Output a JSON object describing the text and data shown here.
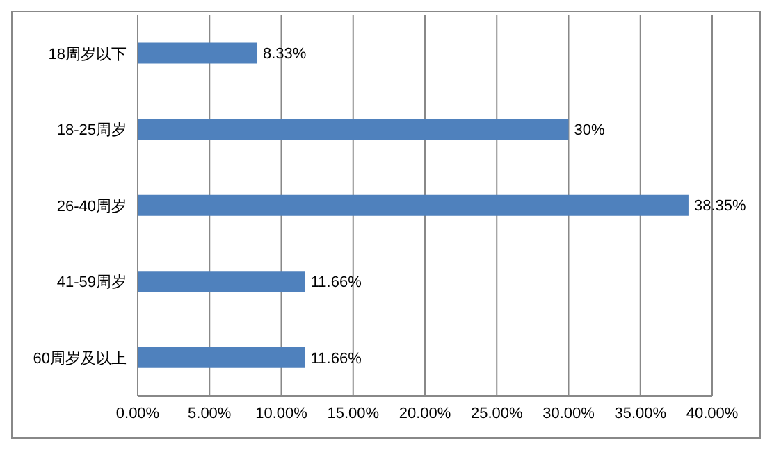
{
  "chart_data": {
    "type": "bar",
    "orientation": "horizontal",
    "categories": [
      "18周岁以下",
      "18-25周岁",
      "26-40周岁",
      "41-59周岁",
      "60周岁及以上"
    ],
    "values": [
      8.33,
      30,
      38.35,
      11.66,
      11.66
    ],
    "value_labels": [
      "8.33%",
      "30%",
      "38.35%",
      "11.66%",
      "11.66%"
    ],
    "color": "#4f81bd",
    "xlim": [
      0,
      40
    ],
    "xticks": [
      {
        "value": 0,
        "label": "0.00%"
      },
      {
        "value": 5,
        "label": "5.00%"
      },
      {
        "value": 10,
        "label": "10.00%"
      },
      {
        "value": 15,
        "label": "15.00%"
      },
      {
        "value": 20,
        "label": "20.00%"
      },
      {
        "value": 25,
        "label": "25.00%"
      },
      {
        "value": 30,
        "label": "30.00%"
      },
      {
        "value": 35,
        "label": "35.00%"
      },
      {
        "value": 40,
        "label": "40.00%"
      }
    ],
    "grid": "x"
  }
}
